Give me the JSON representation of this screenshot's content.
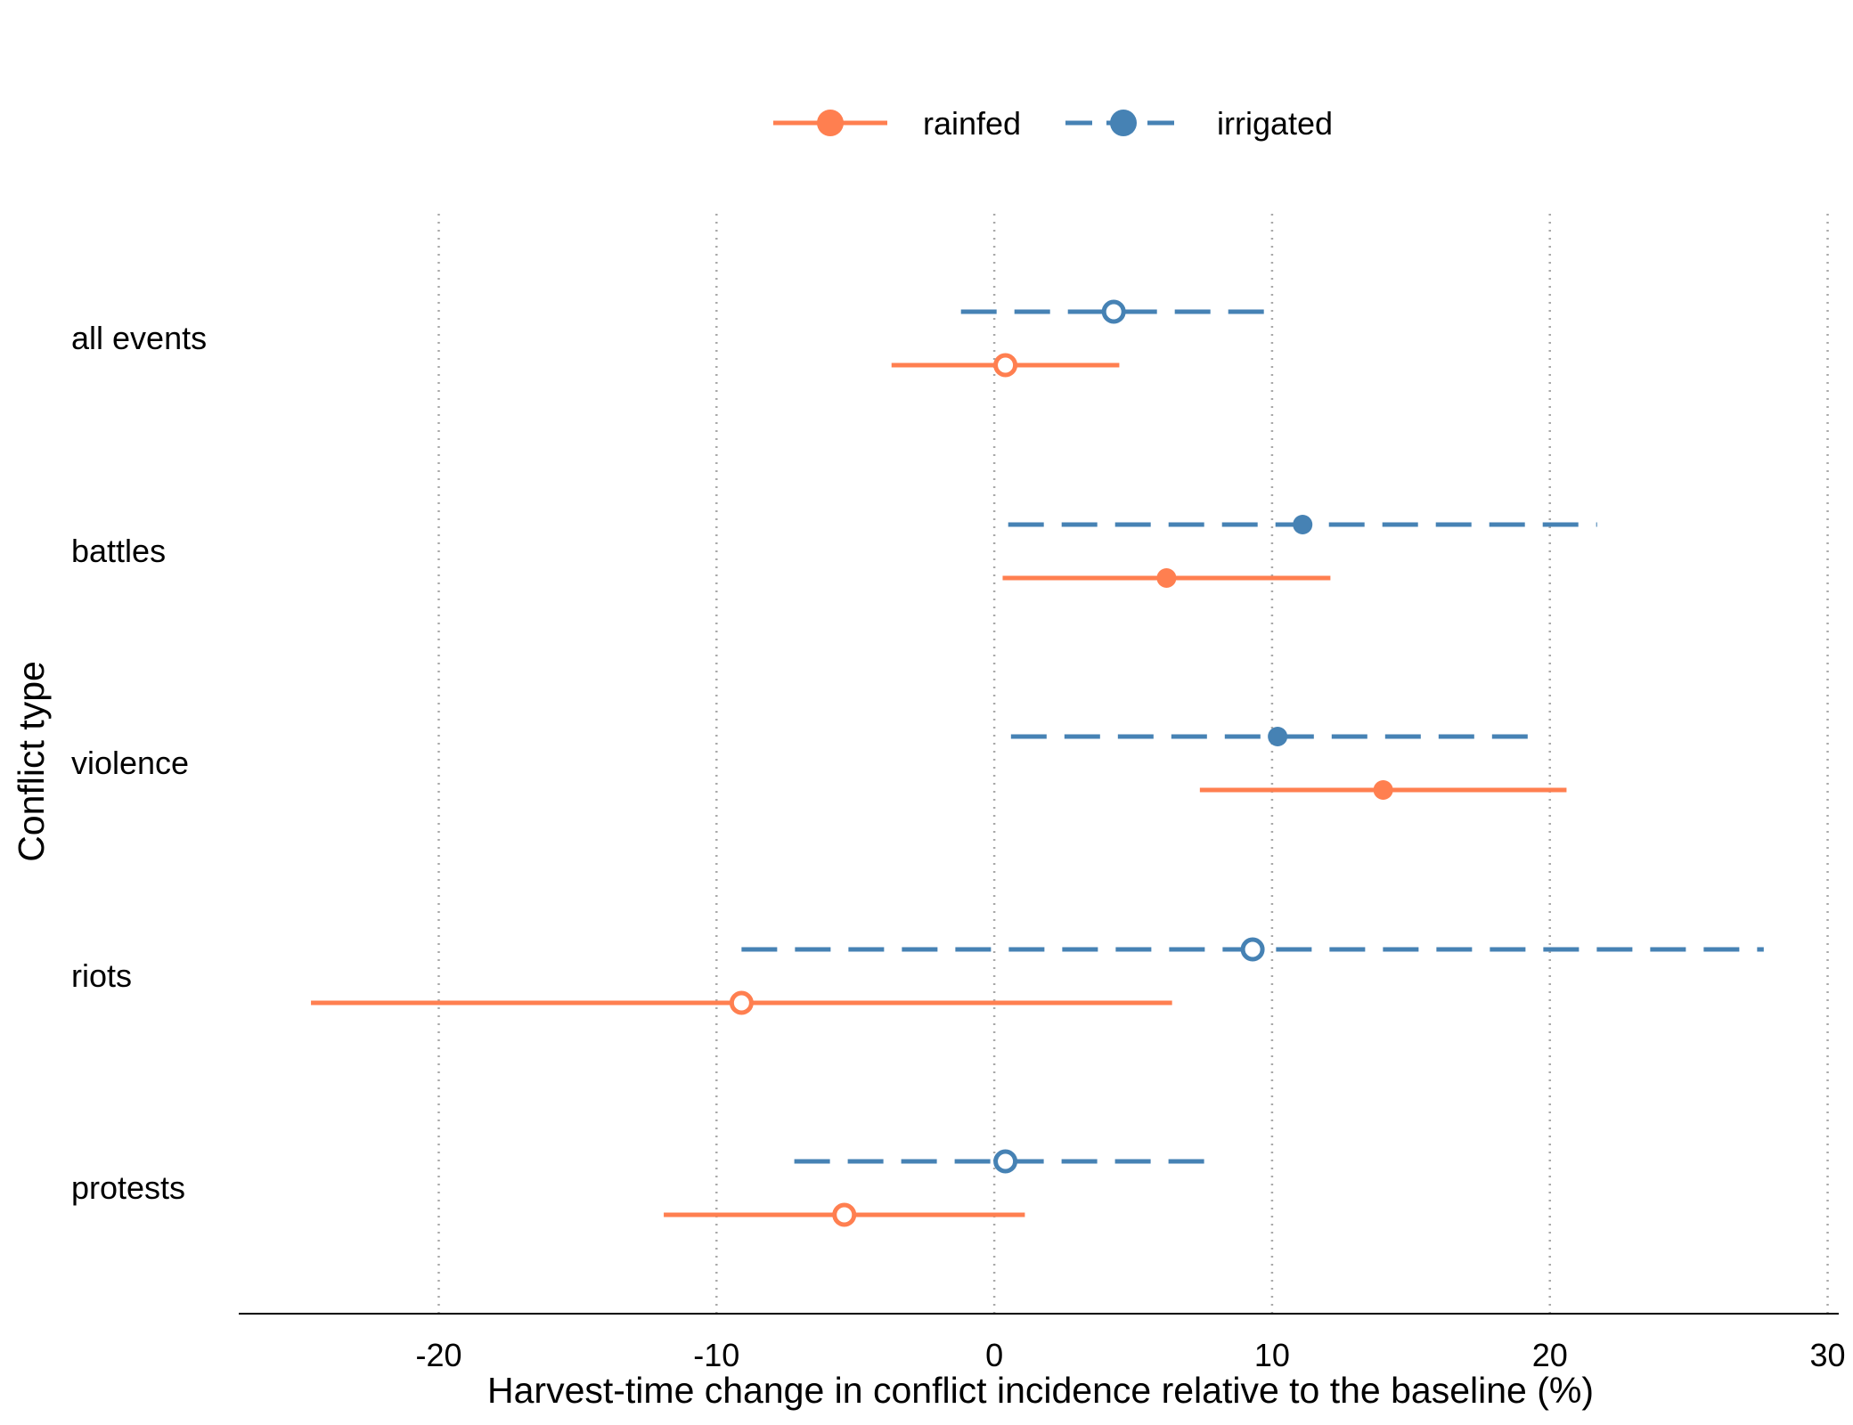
{
  "chart_data": {
    "type": "scatter",
    "title": "",
    "xlabel": "Harvest-time change in conflict incidence relative to the baseline (%)",
    "ylabel": "Conflict type",
    "xlim": [
      -27.2,
      30.4
    ],
    "xticks": [
      -20,
      -10,
      0,
      10,
      20,
      30
    ],
    "xtick_labels": [
      "-20",
      "-10",
      "0",
      "10",
      "20",
      "30"
    ],
    "grid": "vertical dotted",
    "legend_placement": "top-center",
    "categories": [
      "all events",
      "battles",
      "violence",
      "riots",
      "protests"
    ],
    "series": [
      {
        "name": "rainfed",
        "color": "#FF7F50",
        "line_style": "solid",
        "points": [
          {
            "category": "all events",
            "estimate": 0.4,
            "ci_low": -3.7,
            "ci_high": 4.5,
            "significant": false
          },
          {
            "category": "battles",
            "estimate": 6.2,
            "ci_low": 0.3,
            "ci_high": 12.1,
            "significant": true
          },
          {
            "category": "violence",
            "estimate": 14.0,
            "ci_low": 7.4,
            "ci_high": 20.6,
            "significant": true
          },
          {
            "category": "riots",
            "estimate": -9.1,
            "ci_low": -24.6,
            "ci_high": 6.4,
            "significant": false
          },
          {
            "category": "protests",
            "estimate": -5.4,
            "ci_low": -11.9,
            "ci_high": 1.1,
            "significant": false
          }
        ]
      },
      {
        "name": "irrigated",
        "color": "#4682B4",
        "line_style": "dashed",
        "points": [
          {
            "category": "all events",
            "estimate": 4.3,
            "ci_low": -1.2,
            "ci_high": 9.8,
            "significant": false
          },
          {
            "category": "battles",
            "estimate": 11.1,
            "ci_low": 0.5,
            "ci_high": 21.7,
            "significant": true
          },
          {
            "category": "violence",
            "estimate": 10.2,
            "ci_low": 0.6,
            "ci_high": 19.8,
            "significant": true
          },
          {
            "category": "riots",
            "estimate": 9.3,
            "ci_low": -9.1,
            "ci_high": 27.7,
            "significant": false
          },
          {
            "category": "protests",
            "estimate": 0.4,
            "ci_low": -7.2,
            "ci_high": 8.0,
            "significant": false
          }
        ]
      }
    ]
  }
}
